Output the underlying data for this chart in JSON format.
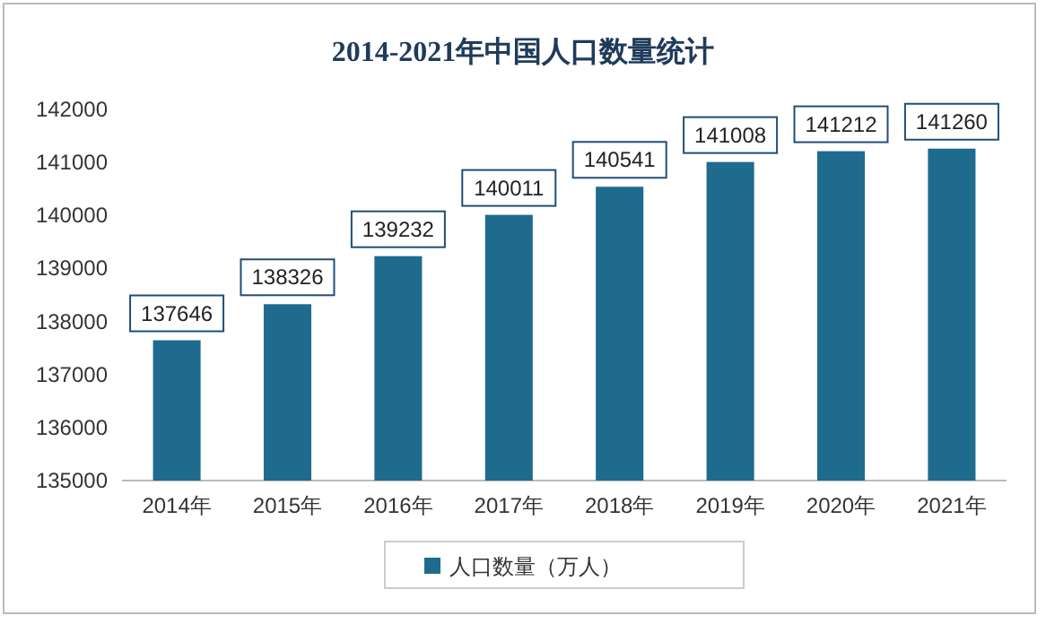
{
  "chart_data": {
    "type": "bar",
    "title": "2014-2021年中国人口数量统计",
    "categories": [
      "2014年",
      "2015年",
      "2016年",
      "2017年",
      "2018年",
      "2019年",
      "2020年",
      "2021年"
    ],
    "series": [
      {
        "name": "人口数量（万人）",
        "color": "#1f6b8e",
        "values": [
          137646,
          138326,
          139232,
          140011,
          140541,
          141008,
          141212,
          141260
        ]
      }
    ],
    "ylim": [
      135000,
      142000
    ],
    "yticks": [
      135000,
      136000,
      137000,
      138000,
      139000,
      140000,
      141000,
      142000
    ],
    "data_labels": true,
    "legend": "bottom",
    "grid": false
  }
}
